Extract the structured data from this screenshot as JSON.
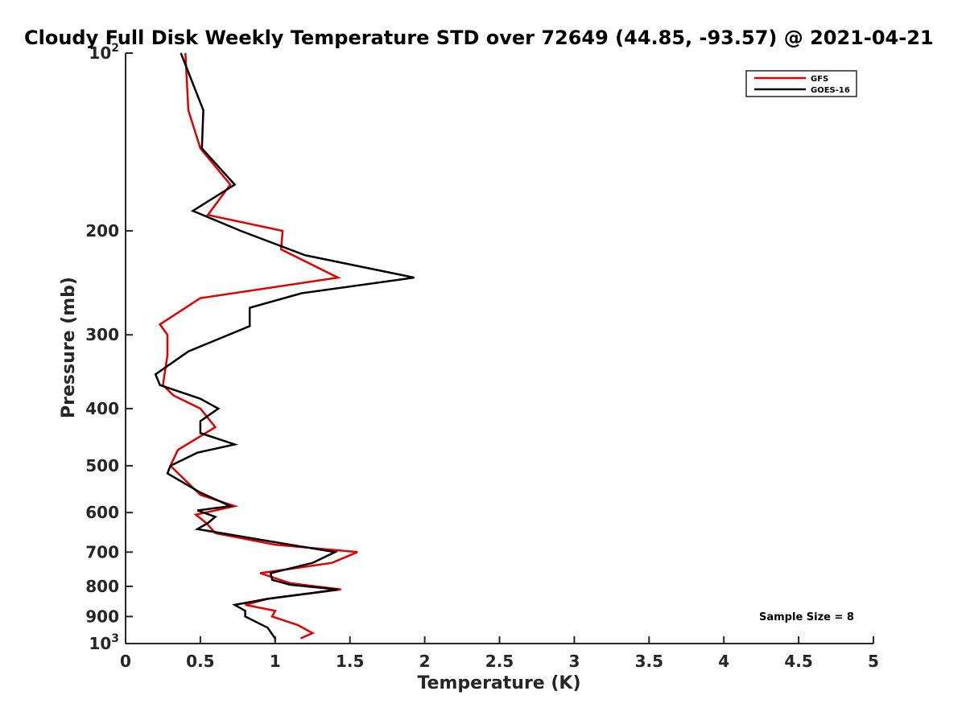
{
  "chart_data": {
    "type": "line",
    "title": "Cloudy Full Disk Weekly Temperature STD over 72649 (44.85, -93.57) @ 2021-04-21",
    "xlabel": "Temperature (K)",
    "ylabel": "Pressure (mb)",
    "xlim": [
      0,
      5
    ],
    "ylim": [
      100,
      1000
    ],
    "y_scale": "log",
    "y_reversed": true,
    "grid": false,
    "legend_position": "top-right",
    "x_ticks": [
      {
        "value": 0,
        "label": "0"
      },
      {
        "value": 0.5,
        "label": "0.5"
      },
      {
        "value": 1,
        "label": "1"
      },
      {
        "value": 1.5,
        "label": "1.5"
      },
      {
        "value": 2,
        "label": "2"
      },
      {
        "value": 2.5,
        "label": "2.5"
      },
      {
        "value": 3,
        "label": "3"
      },
      {
        "value": 3.5,
        "label": "3.5"
      },
      {
        "value": 4,
        "label": "4"
      },
      {
        "value": 4.5,
        "label": "4.5"
      },
      {
        "value": 5,
        "label": "5"
      }
    ],
    "y_ticks": [
      {
        "value": 100,
        "base": "10",
        "exp": "2"
      },
      {
        "value": 200,
        "label": "200"
      },
      {
        "value": 300,
        "label": "300"
      },
      {
        "value": 400,
        "label": "400"
      },
      {
        "value": 500,
        "label": "500"
      },
      {
        "value": 600,
        "label": "600"
      },
      {
        "value": 700,
        "label": "700"
      },
      {
        "value": 800,
        "label": "800"
      },
      {
        "value": 900,
        "label": "900"
      },
      {
        "value": 1000,
        "base": "10",
        "exp": "3"
      }
    ],
    "annotation": "Sample Size = 8",
    "series": [
      {
        "name": "GFS",
        "color": "#e00000",
        "points": [
          [
            0.4,
            100
          ],
          [
            0.42,
            125
          ],
          [
            0.5,
            145
          ],
          [
            0.7,
            167
          ],
          [
            0.55,
            188
          ],
          [
            1.05,
            200
          ],
          [
            1.04,
            215
          ],
          [
            1.42,
            240
          ],
          [
            0.5,
            260
          ],
          [
            0.23,
            288
          ],
          [
            0.28,
            300
          ],
          [
            0.28,
            325
          ],
          [
            0.25,
            365
          ],
          [
            0.32,
            380
          ],
          [
            0.5,
            400
          ],
          [
            0.6,
            430
          ],
          [
            0.35,
            470
          ],
          [
            0.3,
            500
          ],
          [
            0.5,
            560
          ],
          [
            0.73,
            585
          ],
          [
            0.47,
            605
          ],
          [
            0.54,
            625
          ],
          [
            0.6,
            650
          ],
          [
            1.0,
            680
          ],
          [
            1.55,
            700
          ],
          [
            1.38,
            730
          ],
          [
            0.9,
            760
          ],
          [
            1.1,
            790
          ],
          [
            1.44,
            810
          ],
          [
            0.95,
            840
          ],
          [
            0.8,
            860
          ],
          [
            1.0,
            880
          ],
          [
            0.98,
            900
          ],
          [
            1.15,
            930
          ],
          [
            1.25,
            960
          ],
          [
            1.17,
            980
          ]
        ]
      },
      {
        "name": "GOES-16",
        "color": "#000000",
        "points": [
          [
            0.37,
            100
          ],
          [
            0.52,
            125
          ],
          [
            0.51,
            145
          ],
          [
            0.73,
            167
          ],
          [
            0.45,
            185
          ],
          [
            0.77,
            200
          ],
          [
            1.2,
            220
          ],
          [
            1.93,
            240
          ],
          [
            1.18,
            255
          ],
          [
            0.83,
            270
          ],
          [
            0.83,
            290
          ],
          [
            0.42,
            320
          ],
          [
            0.2,
            350
          ],
          [
            0.23,
            365
          ],
          [
            0.5,
            385
          ],
          [
            0.62,
            400
          ],
          [
            0.5,
            420
          ],
          [
            0.5,
            440
          ],
          [
            0.73,
            460
          ],
          [
            0.48,
            475
          ],
          [
            0.3,
            500
          ],
          [
            0.28,
            515
          ],
          [
            0.5,
            555
          ],
          [
            0.7,
            585
          ],
          [
            0.48,
            595
          ],
          [
            0.6,
            610
          ],
          [
            0.55,
            625
          ],
          [
            0.48,
            640
          ],
          [
            1.1,
            680
          ],
          [
            1.4,
            700
          ],
          [
            1.25,
            730
          ],
          [
            0.97,
            760
          ],
          [
            0.98,
            780
          ],
          [
            1.1,
            795
          ],
          [
            1.42,
            810
          ],
          [
            0.95,
            840
          ],
          [
            0.73,
            860
          ],
          [
            0.8,
            880
          ],
          [
            0.8,
            900
          ],
          [
            0.95,
            940
          ],
          [
            1.0,
            980
          ],
          [
            1.0,
            990
          ]
        ]
      }
    ]
  }
}
